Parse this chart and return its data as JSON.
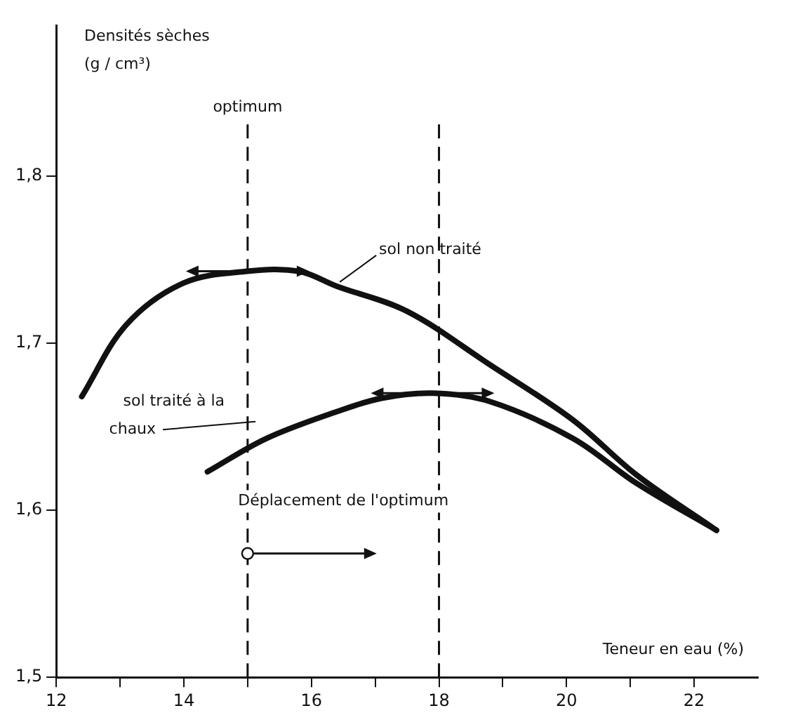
{
  "chart_data": {
    "type": "line",
    "xlabel": "Teneur en eau (%)",
    "ylabel": "Densités sèches (g / cm³)",
    "series": [
      {
        "name": "sol non traité",
        "color": "#111111",
        "x": [
          12.4,
          13.1,
          14.0,
          15.0,
          15.8,
          16.4,
          17.5,
          18.8,
          20.1,
          21.1,
          22.35
        ],
        "values": [
          1.668,
          1.711,
          1.736,
          1.743,
          1.743,
          1.734,
          1.719,
          1.687,
          1.654,
          1.621,
          1.588
        ]
      },
      {
        "name": "sol traité à la chaux",
        "color": "#111111",
        "x": [
          14.37,
          15.3,
          16.4,
          17.1,
          17.9,
          18.8,
          20.1,
          21.1,
          22.35
        ],
        "values": [
          1.623,
          1.643,
          1.659,
          1.667,
          1.67,
          1.665,
          1.643,
          1.616,
          1.588
        ]
      }
    ],
    "xlim": [
      12,
      23
    ],
    "ylim": [
      1.5,
      1.89
    ],
    "xticks": [
      12,
      {
        "value": 13,
        "label": null
      },
      14,
      {
        "value": 15,
        "label": null
      },
      16,
      {
        "value": 17,
        "label": null
      },
      18,
      {
        "value": 19,
        "label": null
      },
      20,
      {
        "value": 21,
        "label": null
      },
      22
    ],
    "yticks": [
      {
        "value": 1.5,
        "label": "1,5"
      },
      {
        "value": 1.6,
        "label": "1,6"
      },
      {
        "value": 1.7,
        "label": "1,7"
      },
      {
        "value": 1.8,
        "label": "1,8"
      }
    ],
    "ref_lines": [
      {
        "axis": "x",
        "value": 15,
        "label": "optimum",
        "line_style": "dashed",
        "color": "#111111"
      },
      {
        "axis": "x",
        "value": 18,
        "label": null,
        "line_style": "dashed",
        "color": "#111111"
      }
    ],
    "annotations": [
      "Déplacement de l'optimum"
    ],
    "grid": false,
    "legend": false,
    "marker": "none",
    "line_style": "solid"
  }
}
